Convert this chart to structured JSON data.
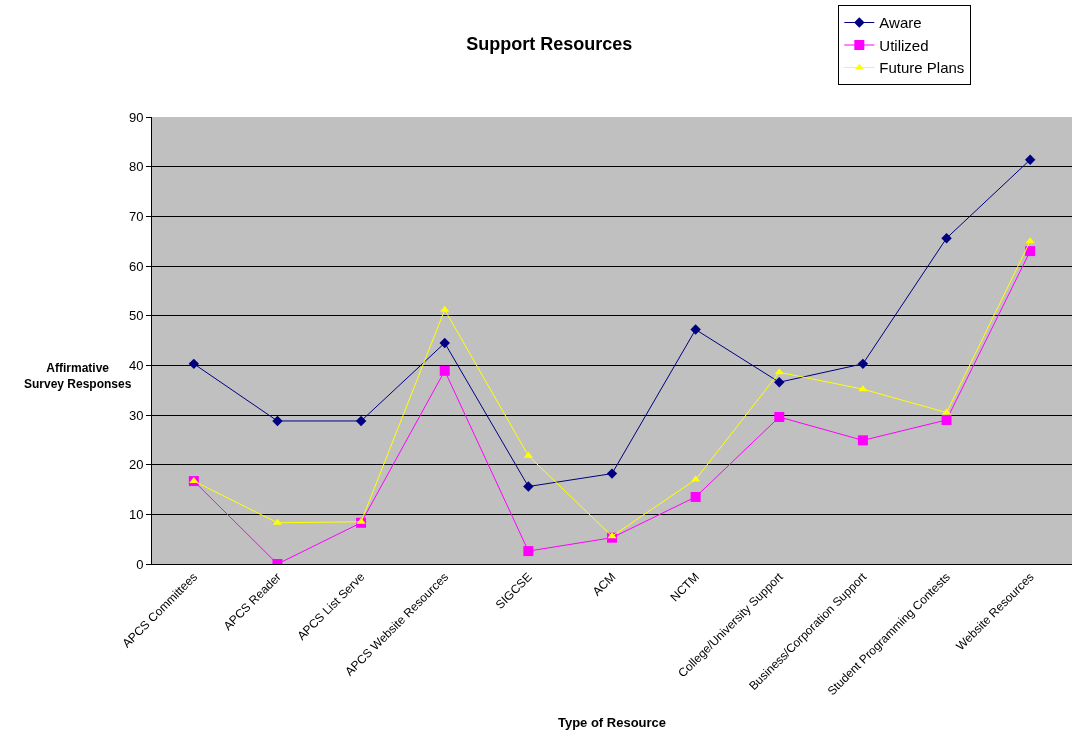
{
  "chart_data": {
    "type": "line",
    "title": "Support Resources",
    "xlabel": "Type of Resource",
    "ylabel": "Affirmative\nSurvey Responses",
    "categories": [
      "APCS Committees",
      "APCS Reader",
      "APCS List Serve",
      "APCS Website Resources",
      "SIGCSE",
      "ACM",
      "NCTM",
      "College/University Support",
      "Business/Corporation Support",
      "Student Programming Contests",
      "Website Resources"
    ],
    "series": [
      {
        "name": "Aware",
        "color": "#000080",
        "marker": "diamond",
        "values": [
          40.3,
          28.8,
          28.8,
          44.5,
          15.6,
          18.2,
          47.2,
          36.6,
          40.3,
          65.6,
          81.4
        ]
      },
      {
        "name": "Utilized",
        "color": "#ff00ff",
        "marker": "square",
        "values": [
          16.7,
          0,
          8.3,
          38.9,
          2.6,
          5.3,
          13.5,
          29.6,
          24.9,
          29.0,
          63.0
        ]
      },
      {
        "name": "Future Plans",
        "color": "#ffff00",
        "marker": "triangle",
        "values": [
          16.7,
          8.3,
          8.5,
          51.2,
          21.8,
          5.6,
          17.0,
          38.6,
          35.2,
          30.5,
          65.0
        ]
      }
    ],
    "ylim": [
      0,
      90
    ],
    "yticks": [
      0,
      10,
      20,
      30,
      40,
      50,
      60,
      70,
      80,
      90
    ],
    "grid": "y",
    "legend": "top right",
    "line_style": "solid"
  }
}
